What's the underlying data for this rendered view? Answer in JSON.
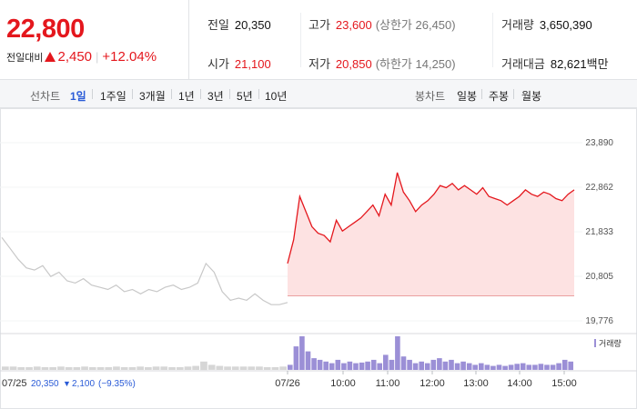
{
  "quote": {
    "price": "22,800",
    "change_label": "전일대비",
    "change_amount": "2,450",
    "change_percent": "+12.04%"
  },
  "stats": {
    "prev_close": {
      "label": "전일",
      "value": "20,350"
    },
    "open": {
      "label": "시가",
      "value": "21,100"
    },
    "high": {
      "label": "고가",
      "value": "23,600",
      "limit_label": "(상한가 26,450)"
    },
    "low": {
      "label": "저가",
      "value": "20,850",
      "limit_label": "(하한가 14,250)"
    },
    "volume": {
      "label": "거래량",
      "value": "3,650,390"
    },
    "trade_value": {
      "label": "거래대금",
      "value": "82,621",
      "unit": "백만"
    }
  },
  "tabs": {
    "line_label": "선차트",
    "line_periods": [
      "1일",
      "1주일",
      "3개월",
      "1년",
      "3년",
      "5년",
      "10년"
    ],
    "active_period": "1일",
    "candle_label": "봉차트",
    "candle_periods": [
      "일봉",
      "주봉",
      "월봉"
    ]
  },
  "chart_data": {
    "type": "line",
    "y_ticks": [
      "23,890",
      "22,862",
      "21,833",
      "20,805",
      "19,776"
    ],
    "ylim": [
      19776,
      23890
    ],
    "baseline": 20350,
    "x_ticks": [
      "07/25",
      "07/26",
      "10:00",
      "11:00",
      "12:00",
      "13:00",
      "14:00",
      "15:00"
    ],
    "prev_day_summary": {
      "date": "07/25",
      "close": "20,350",
      "change": "2,100",
      "change_percent": "(−9.35%)"
    },
    "volume_legend": "거래량",
    "colors": {
      "up": "#e4171d",
      "up_fill": "#fde2e2",
      "prev": "#c8c8c8",
      "volume": "#9b8fd6",
      "baseline": "#e48a8a"
    },
    "prev_day_series": [
      21700,
      21450,
      21200,
      21000,
      20950,
      21050,
      20800,
      20900,
      20700,
      20650,
      20750,
      20600,
      20550,
      20500,
      20600,
      20450,
      20500,
      20400,
      20500,
      20450,
      20550,
      20600,
      20500,
      20550,
      20650,
      21100,
      20900,
      20450,
      20250,
      20300,
      20250,
      20400,
      20250,
      20150,
      20150,
      20200
    ],
    "today_series": [
      21100,
      21650,
      22650,
      22300,
      21950,
      21800,
      21750,
      21600,
      22100,
      21850,
      21950,
      22050,
      22150,
      22300,
      22450,
      22200,
      22700,
      22450,
      23200,
      22750,
      22550,
      22300,
      22450,
      22550,
      22700,
      22900,
      22850,
      22950,
      22800,
      22900,
      22800,
      22700,
      22850,
      22650,
      22600,
      22550,
      22450,
      22550,
      22650,
      22800,
      22700,
      22650,
      22750,
      22700,
      22600,
      22550,
      22700,
      22800
    ],
    "today_volume": [
      0.15,
      0.7,
      1.0,
      0.55,
      0.35,
      0.3,
      0.25,
      0.2,
      0.3,
      0.2,
      0.25,
      0.2,
      0.22,
      0.25,
      0.3,
      0.2,
      0.45,
      0.3,
      1.0,
      0.4,
      0.3,
      0.2,
      0.25,
      0.2,
      0.3,
      0.35,
      0.25,
      0.3,
      0.2,
      0.25,
      0.2,
      0.15,
      0.2,
      0.15,
      0.12,
      0.15,
      0.12,
      0.15,
      0.18,
      0.2,
      0.15,
      0.15,
      0.18,
      0.15,
      0.15,
      0.2,
      0.3,
      0.25
    ],
    "prev_volume": [
      0.1,
      0.1,
      0.08,
      0.08,
      0.1,
      0.08,
      0.08,
      0.1,
      0.08,
      0.08,
      0.1,
      0.08,
      0.08,
      0.08,
      0.1,
      0.08,
      0.08,
      0.1,
      0.08,
      0.1,
      0.1,
      0.08,
      0.08,
      0.1,
      0.12,
      0.25,
      0.15,
      0.12,
      0.1,
      0.1,
      0.1,
      0.1,
      0.1,
      0.08,
      0.08,
      0.1
    ]
  }
}
